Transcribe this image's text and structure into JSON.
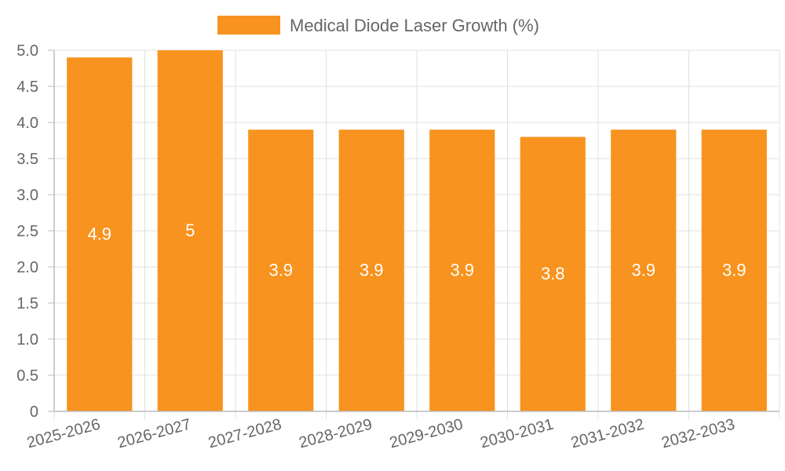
{
  "chart_data": {
    "type": "bar",
    "title": "",
    "xlabel": "",
    "ylabel": "",
    "categories": [
      "2025-2026",
      "2026-2027",
      "2027-2028",
      "2028-2029",
      "2029-2030",
      "2030-2031",
      "2031-2032",
      "2032-2033"
    ],
    "series": [
      {
        "name": "Medical Diode Laser Growth (%)",
        "values": [
          4.9,
          5,
          3.9,
          3.9,
          3.9,
          3.8,
          3.9,
          3.9
        ],
        "labels": [
          "4.9",
          "5",
          "3.9",
          "3.9",
          "3.9",
          "3.8",
          "3.9",
          "3.9"
        ]
      }
    ],
    "ylim": [
      0,
      5
    ],
    "yticks": [
      "0",
      "0.5",
      "1.0",
      "1.5",
      "2.0",
      "2.5",
      "3.0",
      "3.5",
      "4.0",
      "4.5",
      "5.0"
    ],
    "grid": true,
    "legend_position": "top-center",
    "colors": {
      "bar": "#f7931e",
      "grid": "#e0e0e0",
      "axis": "#bbbbbb",
      "tick_text": "#666666",
      "bar_label": "#ffffff"
    }
  }
}
